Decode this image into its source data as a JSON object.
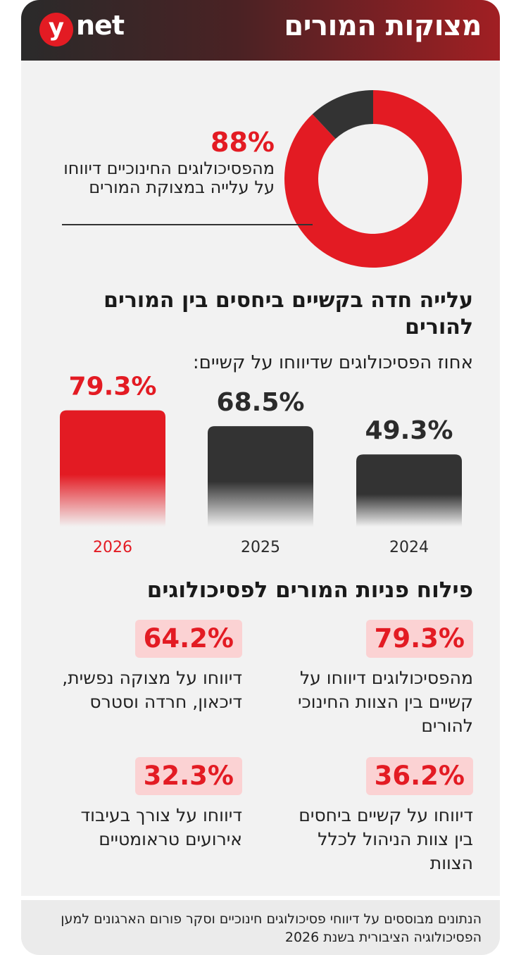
{
  "header": {
    "title": "מצוקות המורים",
    "logo_y": "y",
    "logo_net": "net",
    "bg_color_start": "#2a2a2a",
    "bg_color_end": "#a11f23"
  },
  "colors": {
    "accent_red": "#e31b23",
    "dark": "#333333",
    "badge_bg": "#fbd2d3"
  },
  "stat": {
    "value_text": "88%",
    "description": "מהפסיכולוגים החינוכיים דיווחו על עלייה במצוקת המורים",
    "chart_data": {
      "type": "pie",
      "donut": true,
      "slices": [
        {
          "value": 88,
          "color": "#e31b23"
        },
        {
          "value": 12,
          "color": "#333333"
        }
      ]
    }
  },
  "bar_section": {
    "title": "עלייה חדה בקשיים ביחסים בין המורים להורים",
    "subtitle": "אחוז הפסיכולוגים שדיווחו על קשיים:",
    "chart_data": {
      "type": "bar",
      "categories": [
        "2024",
        "2025",
        "2026"
      ],
      "values": [
        49.3,
        68.5,
        79.3
      ],
      "value_labels": [
        "49.3%",
        "68.5%",
        "79.3%"
      ],
      "colors": [
        "#333333",
        "#333333",
        "#e31b23"
      ],
      "ylim": [
        0,
        100
      ],
      "direction": "right-to-left"
    }
  },
  "referrals": {
    "title": "פילוח פניות המורים לפסיכולוגים",
    "items": [
      {
        "value": "79.3%",
        "text": "מהפסיכולוגים דיווחו על קשיים בין הצוות החינוכי להורים"
      },
      {
        "value": "64.2%",
        "text": "דיווחו על מצוקה נפשית, דיכאון, חרדה וסטרס"
      },
      {
        "value": "36.2%",
        "text": "דיווחו על קשיים ביחסים בין צוות הניהול לכלל הצוות"
      },
      {
        "value": "32.3%",
        "text": "דיווחו על צורך בעיבוד אירועים טראומטיים"
      }
    ]
  },
  "footer": {
    "text": "הנתונים מבוססים על דיווחי פסיכולוגים חינוכיים וסקר פורום הארגונים למען הפסיכולוגיה הציבורית בשנת 2026"
  }
}
